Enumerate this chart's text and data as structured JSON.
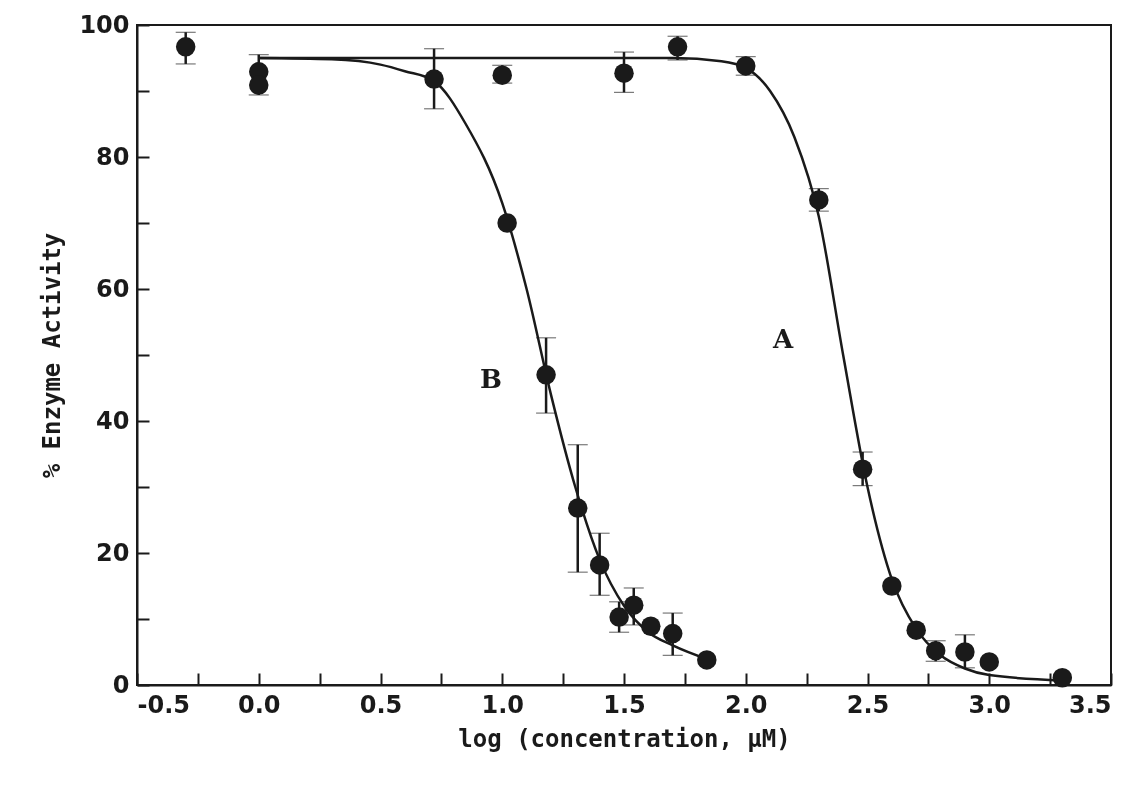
{
  "chart_data": {
    "type": "scatter",
    "xlabel": "log (concentration, μM)",
    "ylabel": "% Enzyme Activity",
    "xlim": [
      -0.5,
      3.5
    ],
    "ylim": [
      0,
      100
    ],
    "xticks": [
      {
        "value": -0.5,
        "label": "-0.5"
      },
      {
        "value": -0.25,
        "label": null
      },
      {
        "value": 0,
        "label": "0.0"
      },
      {
        "value": 0.25,
        "label": null
      },
      {
        "value": 0.5,
        "label": "0.5"
      },
      {
        "value": 0.75,
        "label": null
      },
      {
        "value": 1,
        "label": "1.0"
      },
      {
        "value": 1.25,
        "label": null
      },
      {
        "value": 1.5,
        "label": "1.5"
      },
      {
        "value": 1.75,
        "label": null
      },
      {
        "value": 2,
        "label": "2.0"
      },
      {
        "value": 2.25,
        "label": null
      },
      {
        "value": 2.5,
        "label": "2.5"
      },
      {
        "value": 2.75,
        "label": null
      },
      {
        "value": 3,
        "label": "3.0"
      },
      {
        "value": 3.25,
        "label": null
      },
      {
        "value": 3.5,
        "label": "3.5"
      }
    ],
    "yticks": [
      0,
      {
        "value": 10,
        "label": null
      },
      20,
      {
        "value": 30,
        "label": null
      },
      40,
      {
        "value": 50,
        "label": null
      },
      60,
      {
        "value": 70,
        "label": null
      },
      80,
      {
        "value": 90,
        "label": null
      },
      100
    ],
    "grid": false,
    "line_style": "solid",
    "series": [
      {
        "type": "line",
        "name": "B",
        "color": "#1a1a1a",
        "x": [
          0,
          0.3,
          0.5,
          0.6,
          0.72,
          0.85,
          1.0,
          1.1,
          1.2,
          1.3,
          1.4,
          1.5,
          1.6,
          1.7,
          1.85
        ],
        "values": [
          95,
          94.8,
          94,
          93,
          91.5,
          85,
          73,
          60,
          44,
          30,
          19,
          12,
          8,
          6,
          3.8
        ]
      },
      {
        "type": "line",
        "name": "A",
        "color": "#1a1a1a",
        "x": [
          0,
          0.5,
          1.0,
          1.5,
          1.7,
          1.9,
          2.0,
          2.1,
          2.2,
          2.3,
          2.4,
          2.5,
          2.6,
          2.7,
          2.8,
          2.9,
          3.0,
          3.3
        ],
        "values": [
          95,
          95,
          95,
          95,
          95,
          94.5,
          93.5,
          90,
          83,
          71,
          50,
          30,
          16,
          8.5,
          4.5,
          2.5,
          1.5,
          0.7
        ]
      },
      {
        "type": "scatter",
        "marker": "circle",
        "color": "#1a1a1a",
        "x": [
          0,
          0.72,
          1.02,
          1.18,
          1.31,
          1.4,
          1.48,
          1.54,
          1.61,
          1.7,
          1.84
        ],
        "values": [
          92.9,
          91.8,
          70,
          47,
          26.8,
          18.2,
          10.3,
          12.1,
          8.9,
          7.8,
          3.8
        ],
        "errors": [
          [
            89.4,
            95.5
          ],
          [
            87.3,
            96.4
          ],
          null,
          [
            41.2,
            52.6
          ],
          [
            17.1,
            36.4
          ],
          [
            13.6,
            23
          ],
          [
            8,
            12.6
          ],
          [
            9.1,
            14.7
          ],
          null,
          [
            4.5,
            10.9
          ],
          null
        ]
      },
      {
        "type": "scatter",
        "marker": "circle",
        "color": "#1a1a1a",
        "x": [
          -0.3,
          0,
          1.0,
          1.5,
          1.72,
          2.0,
          2.3,
          2.48,
          2.6,
          2.7,
          2.78,
          2.9,
          3.0,
          3.3
        ],
        "values": [
          96.7,
          90.9,
          92.4,
          92.7,
          96.7,
          93.8,
          73.5,
          32.7,
          15,
          8.3,
          5.2,
          5,
          3.5,
          1.1
        ],
        "errors": [
          [
            94.1,
            98.9
          ],
          null,
          [
            91.2,
            93.9
          ],
          [
            89.8,
            95.9
          ],
          [
            94.7,
            98.3
          ],
          [
            92.4,
            95.2
          ],
          [
            71.8,
            75.2
          ],
          [
            30.2,
            35.3
          ],
          null,
          null,
          [
            3.6,
            6.7
          ],
          [
            2.6,
            7.6
          ],
          null,
          null
        ]
      }
    ]
  }
}
